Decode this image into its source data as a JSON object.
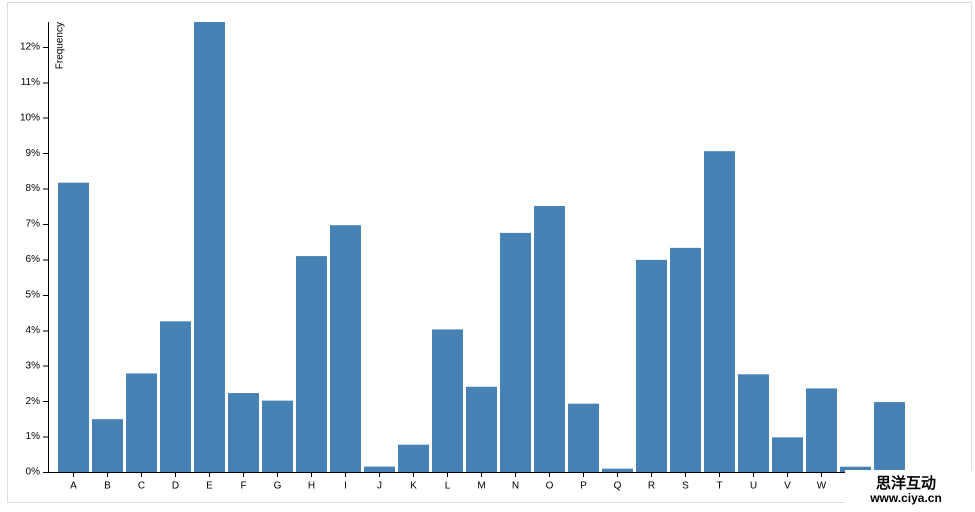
{
  "chart_data": {
    "type": "bar",
    "y_label": "Frequency",
    "categories": [
      "A",
      "B",
      "C",
      "D",
      "E",
      "F",
      "G",
      "H",
      "I",
      "J",
      "K",
      "L",
      "M",
      "N",
      "O",
      "P",
      "Q",
      "R",
      "S",
      "T",
      "U",
      "V",
      "W",
      null,
      null
    ],
    "values": [
      8.167,
      1.492,
      2.782,
      4.253,
      12.702,
      2.228,
      2.015,
      6.094,
      6.966,
      0.153,
      0.772,
      4.025,
      2.406,
      6.749,
      7.507,
      1.929,
      0.095,
      5.987,
      6.327,
      9.056,
      2.758,
      0.978,
      2.36,
      0.15,
      1.974
    ],
    "color": "#4682b4",
    "ylim": [
      0,
      12.702
    ],
    "yticks": [
      {
        "value": 0,
        "label": "0%"
      },
      {
        "value": 1,
        "label": "1%"
      },
      {
        "value": 2,
        "label": "2%"
      },
      {
        "value": 3,
        "label": "3%"
      },
      {
        "value": 4,
        "label": "4%"
      },
      {
        "value": 5,
        "label": "5%"
      },
      {
        "value": 6,
        "label": "6%"
      },
      {
        "value": 7,
        "label": "7%"
      },
      {
        "value": 8,
        "label": "8%"
      },
      {
        "value": 9,
        "label": "9%"
      },
      {
        "value": 10,
        "label": "10%"
      },
      {
        "value": 11,
        "label": "11%"
      },
      {
        "value": 12,
        "label": "12%"
      }
    ],
    "grid": false
  },
  "watermark": {
    "title": "思洋互动",
    "url": "www.ciya.cn"
  }
}
